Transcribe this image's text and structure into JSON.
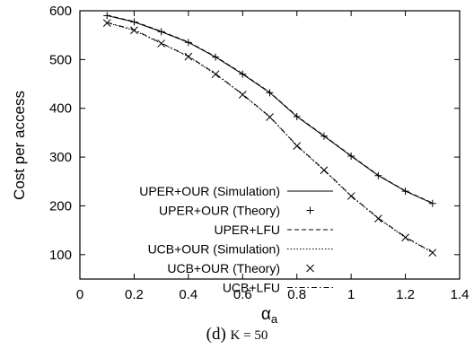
{
  "chart_data": {
    "type": "line",
    "xlabel": "α",
    "xlabel_sub": "a",
    "ylabel": "Cost per access",
    "xlim": [
      0,
      1.4
    ],
    "ylim": [
      50,
      600
    ],
    "xticks": [
      0,
      0.2,
      0.4,
      0.6,
      0.8,
      1,
      1.2,
      1.4
    ],
    "xtick_labels": [
      "0",
      "0.2",
      "0.4",
      "0.6",
      "0.8",
      "1",
      "1.2",
      "1.4"
    ],
    "yticks": [
      100,
      200,
      300,
      400,
      500,
      600
    ],
    "ytick_labels": [
      "100",
      "200",
      "300",
      "400",
      "500",
      "600"
    ],
    "grid": false,
    "legend_position": "bottom-left",
    "series": [
      {
        "name": "UPER+OUR (Simulation)",
        "style": "solid",
        "x": [
          0.1,
          0.2,
          0.3,
          0.4,
          0.5,
          0.6,
          0.7,
          0.8,
          0.9,
          1.0,
          1.1,
          1.2,
          1.3
        ],
        "y": [
          590,
          577,
          557,
          535,
          505,
          470,
          432,
          383,
          343,
          302,
          262,
          230,
          205
        ]
      },
      {
        "name": "UPER+OUR (Theory)",
        "style": "plus",
        "x": [
          0.1,
          0.2,
          0.3,
          0.4,
          0.5,
          0.6,
          0.7,
          0.8,
          0.9,
          1.0,
          1.1,
          1.2,
          1.3
        ],
        "y": [
          590,
          577,
          557,
          535,
          505,
          470,
          432,
          383,
          343,
          302,
          262,
          230,
          205
        ]
      },
      {
        "name": "UPER+LFU",
        "style": "dashed",
        "x": [
          0.1,
          0.2,
          0.3,
          0.4,
          0.5,
          0.6,
          0.7,
          0.8,
          0.9,
          1.0,
          1.1,
          1.2,
          1.3
        ],
        "y": [
          591,
          578,
          558,
          536,
          506,
          471,
          433,
          384,
          344,
          303,
          263,
          231,
          206
        ]
      },
      {
        "name": "UCB+OUR (Simulation)",
        "style": "dotted",
        "x": [
          0.1,
          0.2,
          0.3,
          0.4,
          0.5,
          0.6,
          0.7,
          0.8,
          0.9,
          1.0,
          1.1,
          1.2,
          1.3
        ],
        "y": [
          575,
          560,
          533,
          506,
          470,
          428,
          382,
          323,
          273,
          220,
          174,
          135,
          104
        ]
      },
      {
        "name": "UCB+OUR (Theory)",
        "style": "cross",
        "x": [
          0.1,
          0.2,
          0.3,
          0.4,
          0.5,
          0.6,
          0.7,
          0.8,
          0.9,
          1.0,
          1.1,
          1.2,
          1.3
        ],
        "y": [
          575,
          560,
          533,
          506,
          470,
          428,
          382,
          323,
          273,
          220,
          174,
          135,
          104
        ]
      },
      {
        "name": "UCB+LFU",
        "style": "dashdot",
        "x": [
          0.1,
          0.2,
          0.3,
          0.4,
          0.5,
          0.6,
          0.7,
          0.8,
          0.9,
          1.0,
          1.1,
          1.2,
          1.3
        ],
        "y": [
          576,
          561,
          534,
          507,
          471,
          429,
          383,
          324,
          274,
          221,
          175,
          136,
          105
        ]
      }
    ]
  },
  "caption": {
    "label": "(d)",
    "text": "K = 50"
  }
}
